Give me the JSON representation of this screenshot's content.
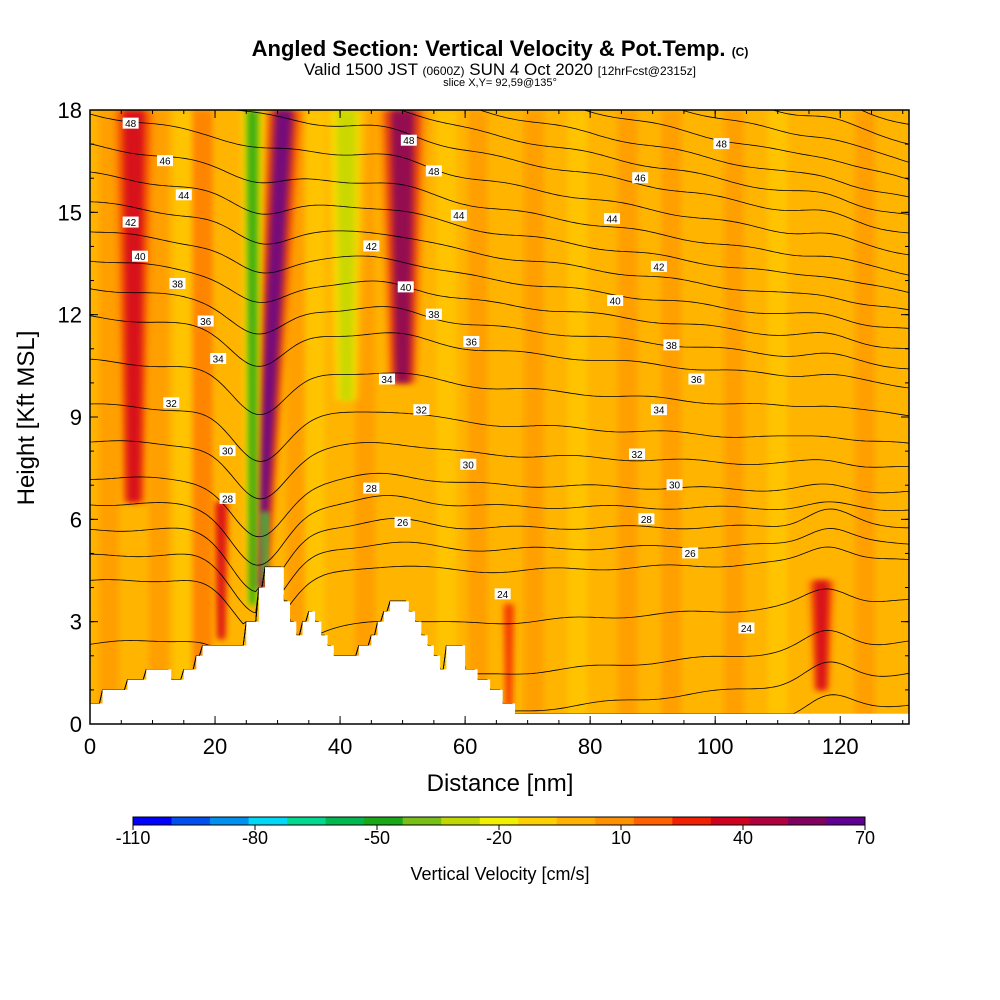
{
  "chart_data": {
    "type": "heatmap",
    "title": "Angled Section: Vertical Velocity & Pot.Temp.",
    "title_unit": "(C)",
    "subtitle_parts": [
      "Valid 1500 JST",
      "(0600Z)",
      "SUN 4 Oct 2020",
      "[12hrFcst@2315z]"
    ],
    "slice_label": "slice X,Y= 92,59@135°",
    "xlabel": "Distance [nm]",
    "ylabel": "Height [Kft MSL]",
    "xlim": [
      0,
      131
    ],
    "ylim": [
      0,
      18
    ],
    "x_ticks": [
      0,
      20,
      40,
      60,
      80,
      100,
      120
    ],
    "y_ticks": [
      0,
      3,
      6,
      9,
      12,
      15,
      18
    ],
    "colorbar": {
      "label": "Vertical Velocity [cm/s]",
      "tick_values": [
        -110,
        -80,
        -50,
        -20,
        10,
        40,
        70
      ],
      "range": [
        -110,
        70
      ],
      "colors": [
        "#0000ff",
        "#0050f0",
        "#0090f0",
        "#00d8f8",
        "#00d890",
        "#00b850",
        "#18a818",
        "#78c018",
        "#c0d800",
        "#f0f000",
        "#ffd000",
        "#ffb000",
        "#ff9000",
        "#ff6000",
        "#f02000",
        "#d00020",
        "#b00040",
        "#800060",
        "#600090"
      ]
    },
    "background_color": "#ffb400",
    "terrain": [
      [
        0,
        0.6
      ],
      [
        2,
        0.6
      ],
      [
        2,
        1
      ],
      [
        6,
        1
      ],
      [
        6,
        1.3
      ],
      [
        9,
        1.3
      ],
      [
        9,
        1.6
      ],
      [
        13,
        1.6
      ],
      [
        13,
        1.3
      ],
      [
        15,
        1.3
      ],
      [
        15,
        1.6
      ],
      [
        17,
        1.6
      ],
      [
        17,
        2
      ],
      [
        18,
        2
      ],
      [
        18,
        2.3
      ],
      [
        25,
        2.3
      ],
      [
        25,
        3
      ],
      [
        27,
        3
      ],
      [
        27,
        4
      ],
      [
        28,
        4
      ],
      [
        28,
        4.6
      ],
      [
        31,
        4.6
      ],
      [
        31,
        3.6
      ],
      [
        32,
        3.6
      ],
      [
        32,
        3
      ],
      [
        33,
        3
      ],
      [
        33,
        2.6
      ],
      [
        34,
        2.6
      ],
      [
        34,
        3
      ],
      [
        35,
        3
      ],
      [
        35,
        3.3
      ],
      [
        36,
        3.3
      ],
      [
        36,
        3
      ],
      [
        37,
        3
      ],
      [
        37,
        2.6
      ],
      [
        38,
        2.6
      ],
      [
        38,
        2.3
      ],
      [
        39,
        2.3
      ],
      [
        39,
        2
      ],
      [
        43,
        2
      ],
      [
        43,
        2.3
      ],
      [
        45,
        2.3
      ],
      [
        45,
        2.6
      ],
      [
        46,
        2.6
      ],
      [
        46,
        3
      ],
      [
        47,
        3
      ],
      [
        47,
        3.3
      ],
      [
        48,
        3.3
      ],
      [
        48,
        3.6
      ],
      [
        51,
        3.6
      ],
      [
        51,
        3.3
      ],
      [
        52,
        3.3
      ],
      [
        52,
        3
      ],
      [
        53,
        3
      ],
      [
        53,
        2.6
      ],
      [
        54,
        2.6
      ],
      [
        54,
        2.3
      ],
      [
        55,
        2.3
      ],
      [
        55,
        2
      ],
      [
        56,
        2
      ],
      [
        56,
        1.6
      ],
      [
        57,
        1.6
      ],
      [
        57,
        2.3
      ],
      [
        60,
        2.3
      ],
      [
        60,
        1.6
      ],
      [
        62,
        1.6
      ],
      [
        62,
        1.3
      ],
      [
        64,
        1.3
      ],
      [
        64,
        1
      ],
      [
        66,
        1
      ],
      [
        66,
        0.6
      ],
      [
        68,
        0.6
      ],
      [
        68,
        0.3
      ],
      [
        131,
        0.3
      ]
    ],
    "updraft_bands": [
      {
        "base_x": 27,
        "base_h": 4,
        "top_x": 31,
        "top_h": 18,
        "half_width": 1.8,
        "value": 65
      },
      {
        "base_x": 7,
        "base_h": 6.5,
        "top_x": 7,
        "top_h": 18,
        "half_width": 2.4,
        "value": 35
      },
      {
        "base_x": 50,
        "base_h": 10,
        "top_x": 50,
        "top_h": 18,
        "half_width": 2.6,
        "value": 55
      },
      {
        "base_x": 21,
        "base_h": 2.5,
        "top_x": 21,
        "top_h": 6.5,
        "half_width": 1.0,
        "value": 35
      },
      {
        "base_x": 117,
        "base_h": 1,
        "top_x": 117,
        "top_h": 4.2,
        "half_width": 1.6,
        "value": 35
      },
      {
        "base_x": 67,
        "base_h": 0.5,
        "top_x": 67,
        "top_h": 3.5,
        "half_width": 0.8,
        "value": 30
      }
    ],
    "downdraft_bands": [
      {
        "base_x": 26,
        "base_h": 3.5,
        "top_x": 26,
        "top_h": 18,
        "half_width": 1.2,
        "value": -45
      },
      {
        "base_x": 41,
        "base_h": 9.5,
        "top_x": 41,
        "top_h": 18,
        "half_width": 2.2,
        "value": -25
      },
      {
        "base_x": 28,
        "base_h": 4.2,
        "top_x": 28,
        "top_h": 6.2,
        "half_width": 0.5,
        "value": -60
      }
    ],
    "isentrope_levels": [
      22,
      23,
      24,
      25,
      26,
      27,
      28,
      29,
      30,
      31,
      32,
      33,
      34,
      35,
      36,
      37,
      38,
      39,
      40,
      41,
      42,
      43,
      44,
      45,
      46,
      47,
      48
    ],
    "isentrope_heights_right": {
      "24": 2.4,
      "26": 4.8,
      "28": 5.8,
      "30": 6.8,
      "32": 8.2,
      "34": 9.9,
      "36": 11.0,
      "38": 12.1,
      "40": 13.2,
      "42": 14.4,
      "44": 15.4,
      "46": 16.5,
      "48": 17.6
    },
    "contour_labels": [
      {
        "x": 6.5,
        "h": 17.6,
        "text": "48"
      },
      {
        "x": 12,
        "h": 16.5,
        "text": "46"
      },
      {
        "x": 15,
        "h": 15.5,
        "text": "44"
      },
      {
        "x": 6.5,
        "h": 14.7,
        "text": "42"
      },
      {
        "x": 8,
        "h": 13.7,
        "text": "40"
      },
      {
        "x": 14,
        "h": 12.9,
        "text": "38"
      },
      {
        "x": 18.5,
        "h": 11.8,
        "text": "36"
      },
      {
        "x": 20.5,
        "h": 10.7,
        "text": "34"
      },
      {
        "x": 13,
        "h": 9.4,
        "text": "32"
      },
      {
        "x": 22,
        "h": 8.0,
        "text": "30"
      },
      {
        "x": 22,
        "h": 6.6,
        "text": "28"
      },
      {
        "x": 51,
        "h": 17.1,
        "text": "48"
      },
      {
        "x": 55,
        "h": 16.2,
        "text": "48"
      },
      {
        "x": 59,
        "h": 14.9,
        "text": "44"
      },
      {
        "x": 45,
        "h": 14.0,
        "text": "42"
      },
      {
        "x": 50.5,
        "h": 12.8,
        "text": "40"
      },
      {
        "x": 55,
        "h": 12.0,
        "text": "38"
      },
      {
        "x": 61,
        "h": 11.2,
        "text": "36"
      },
      {
        "x": 47.5,
        "h": 10.1,
        "text": "34"
      },
      {
        "x": 53,
        "h": 9.2,
        "text": "32"
      },
      {
        "x": 60.5,
        "h": 7.6,
        "text": "30"
      },
      {
        "x": 45,
        "h": 6.9,
        "text": "28"
      },
      {
        "x": 50,
        "h": 5.9,
        "text": "26"
      },
      {
        "x": 66,
        "h": 3.8,
        "text": "24"
      },
      {
        "x": 101,
        "h": 17.0,
        "text": "48"
      },
      {
        "x": 88,
        "h": 16.0,
        "text": "46"
      },
      {
        "x": 83.5,
        "h": 14.8,
        "text": "44"
      },
      {
        "x": 91,
        "h": 13.4,
        "text": "42"
      },
      {
        "x": 84,
        "h": 12.4,
        "text": "40"
      },
      {
        "x": 93,
        "h": 11.1,
        "text": "38"
      },
      {
        "x": 97,
        "h": 10.1,
        "text": "36"
      },
      {
        "x": 91,
        "h": 9.2,
        "text": "34"
      },
      {
        "x": 87.5,
        "h": 7.9,
        "text": "32"
      },
      {
        "x": 93.5,
        "h": 7.0,
        "text": "30"
      },
      {
        "x": 89,
        "h": 6.0,
        "text": "28"
      },
      {
        "x": 96,
        "h": 5.0,
        "text": "26"
      },
      {
        "x": 105,
        "h": 2.8,
        "text": "24"
      }
    ]
  }
}
